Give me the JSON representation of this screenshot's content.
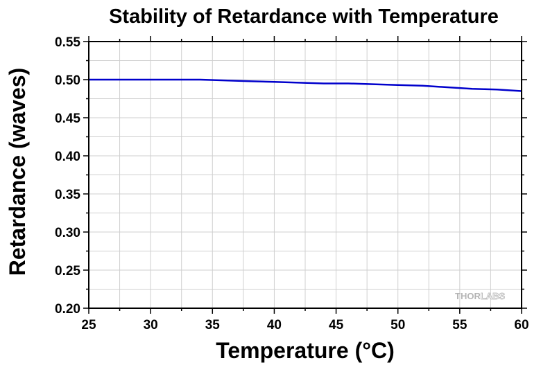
{
  "chart_data": {
    "type": "line",
    "title": "Stability of Retardance with Temperature",
    "xlabel": "Temperature (°C)",
    "ylabel": "Retardance (waves)",
    "xlim": [
      25,
      60
    ],
    "ylim": [
      0.2,
      0.55
    ],
    "x_ticks": [
      "25",
      "30",
      "35",
      "40",
      "45",
      "50",
      "55",
      "60"
    ],
    "y_ticks": [
      "0.20",
      "0.25",
      "0.30",
      "0.35",
      "0.40",
      "0.45",
      "0.50",
      "0.55"
    ],
    "grid": true,
    "series": [
      {
        "color": "#0000cc",
        "x": [
          25,
          28,
          30,
          32,
          34,
          36,
          38,
          40,
          42,
          44,
          46,
          48,
          50,
          52,
          54,
          56,
          58,
          60
        ],
        "y": [
          0.5,
          0.5,
          0.5,
          0.5,
          0.5,
          0.499,
          0.498,
          0.497,
          0.496,
          0.495,
          0.495,
          0.494,
          0.493,
          0.492,
          0.49,
          0.488,
          0.487,
          0.485
        ]
      }
    ]
  },
  "watermark": {
    "brand_thor": "THOR",
    "brand_labs": "LABS",
    "color": "#b4b4b4"
  }
}
